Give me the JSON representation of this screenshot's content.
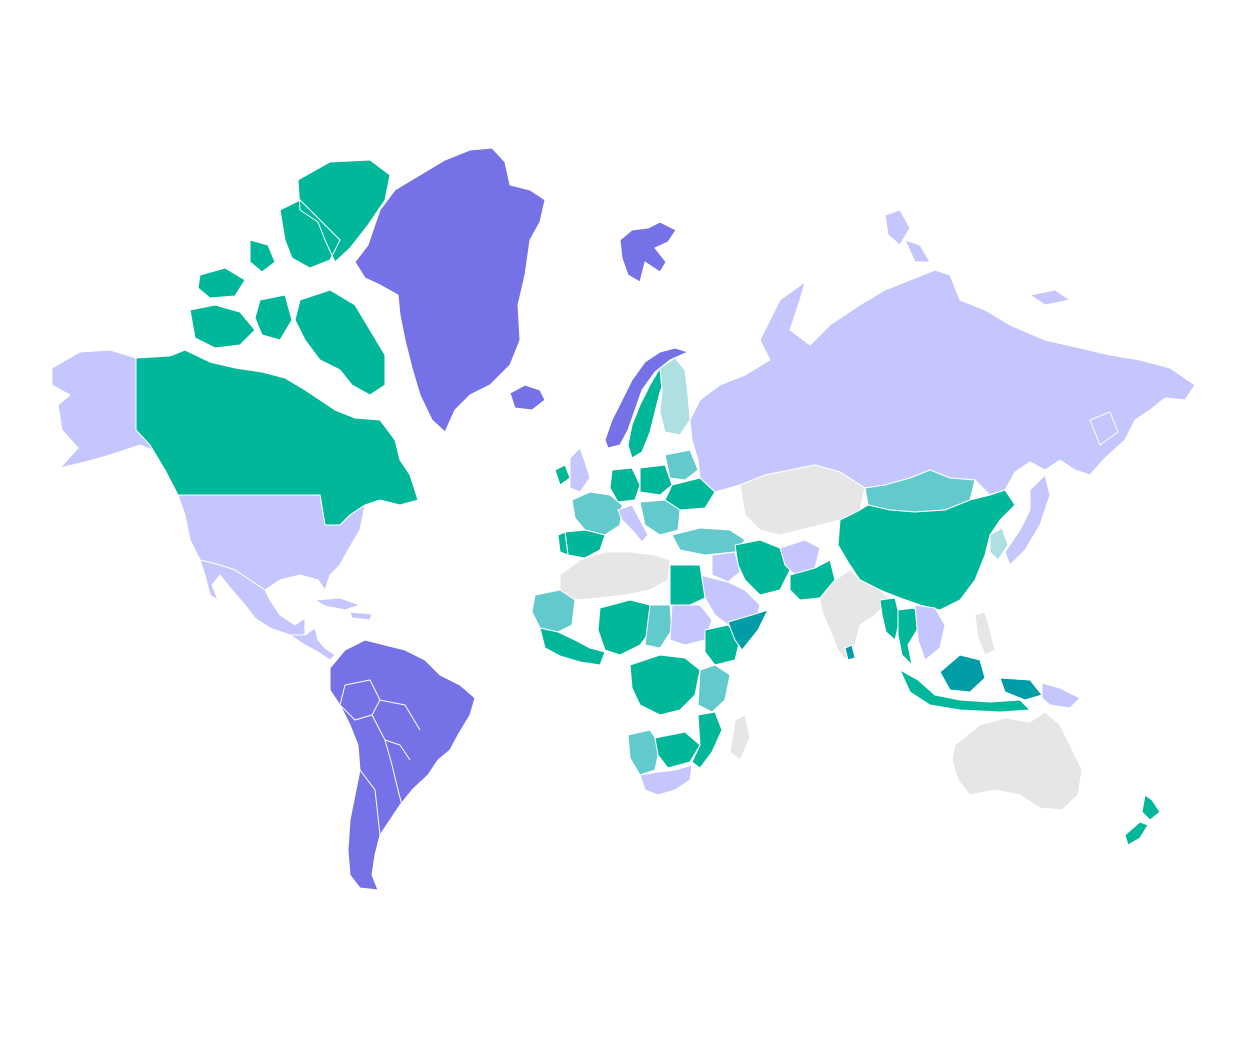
{
  "map": {
    "colors": {
      "none": "#e6e6e6",
      "light_lavender": "#c5c6fd",
      "purple": "#7571e6",
      "green": "#00b899",
      "teal": "#62c9cc",
      "light_teal": "#aedfe1",
      "dark_teal": "#009da6"
    },
    "regions": [
      {
        "name": "alaska",
        "category": "light_lavender"
      },
      {
        "name": "canada",
        "category": "green"
      },
      {
        "name": "canada-arctic-islands",
        "category": "green"
      },
      {
        "name": "greenland",
        "category": "purple"
      },
      {
        "name": "iceland",
        "category": "purple"
      },
      {
        "name": "svalbard",
        "category": "purple"
      },
      {
        "name": "united-states",
        "category": "light_lavender"
      },
      {
        "name": "mexico",
        "category": "light_lavender"
      },
      {
        "name": "central-america",
        "category": "light_lavender"
      },
      {
        "name": "caribbean",
        "category": "light_lavender"
      },
      {
        "name": "south-america",
        "category": "purple"
      },
      {
        "name": "norway",
        "category": "purple"
      },
      {
        "name": "sweden",
        "category": "green"
      },
      {
        "name": "finland",
        "category": "light_teal"
      },
      {
        "name": "united-kingdom",
        "category": "light_lavender"
      },
      {
        "name": "ireland",
        "category": "green"
      },
      {
        "name": "france",
        "category": "teal"
      },
      {
        "name": "spain",
        "category": "green"
      },
      {
        "name": "portugal",
        "category": "green"
      },
      {
        "name": "germany",
        "category": "green"
      },
      {
        "name": "poland",
        "category": "green"
      },
      {
        "name": "ukraine",
        "category": "green"
      },
      {
        "name": "belarus",
        "category": "teal"
      },
      {
        "name": "italy",
        "category": "light_lavender"
      },
      {
        "name": "balkans",
        "category": "teal"
      },
      {
        "name": "turkey",
        "category": "teal"
      },
      {
        "name": "russia",
        "category": "light_lavender"
      },
      {
        "name": "kazakhstan-central-asia",
        "category": "none"
      },
      {
        "name": "mongolia",
        "category": "teal"
      },
      {
        "name": "china",
        "category": "green"
      },
      {
        "name": "japan",
        "category": "light_lavender"
      },
      {
        "name": "korea",
        "category": "light_teal"
      },
      {
        "name": "iran",
        "category": "green"
      },
      {
        "name": "iraq",
        "category": "light_lavender"
      },
      {
        "name": "saudi-arabia",
        "category": "light_lavender"
      },
      {
        "name": "afghanistan",
        "category": "light_lavender"
      },
      {
        "name": "pakistan",
        "category": "green"
      },
      {
        "name": "india",
        "category": "none"
      },
      {
        "name": "sri-lanka",
        "category": "dark_teal"
      },
      {
        "name": "myanmar",
        "category": "green"
      },
      {
        "name": "thailand",
        "category": "green"
      },
      {
        "name": "indochina",
        "category": "light_lavender"
      },
      {
        "name": "philippines",
        "category": "none"
      },
      {
        "name": "malaysia-indonesia",
        "category": "green"
      },
      {
        "name": "borneo",
        "category": "dark_teal"
      },
      {
        "name": "papua-new-guinea",
        "category": "light_lavender"
      },
      {
        "name": "australia",
        "category": "none"
      },
      {
        "name": "new-zealand",
        "category": "green"
      },
      {
        "name": "north-africa",
        "category": "none"
      },
      {
        "name": "egypt",
        "category": "green"
      },
      {
        "name": "mauritania-west-africa",
        "category": "teal"
      },
      {
        "name": "west-africa-coast",
        "category": "green"
      },
      {
        "name": "niger-nigeria",
        "category": "green"
      },
      {
        "name": "chad",
        "category": "teal"
      },
      {
        "name": "sudan",
        "category": "light_lavender"
      },
      {
        "name": "ethiopia",
        "category": "green"
      },
      {
        "name": "somalia",
        "category": "dark_teal"
      },
      {
        "name": "central-africa",
        "category": "green"
      },
      {
        "name": "east-africa",
        "category": "teal"
      },
      {
        "name": "angola",
        "category": "teal"
      },
      {
        "name": "zambia-zimbabwe",
        "category": "green"
      },
      {
        "name": "mozambique",
        "category": "green"
      },
      {
        "name": "south-africa",
        "category": "light_lavender"
      },
      {
        "name": "madagascar",
        "category": "none"
      }
    ]
  }
}
